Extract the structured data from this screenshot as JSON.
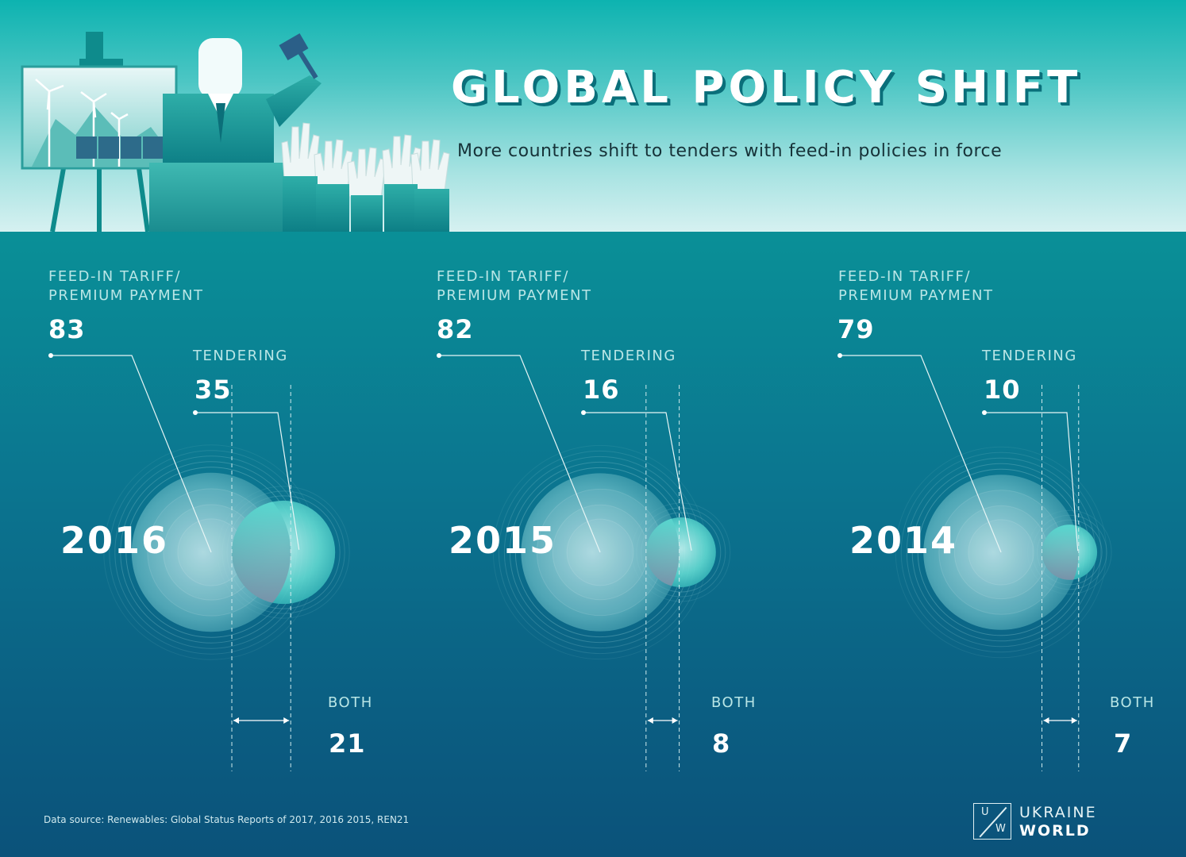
{
  "header": {
    "title": "GLOBAL POLICY SHIFT",
    "subtitle": "More countries shift to tenders with feed-in policies in force"
  },
  "chart_data": {
    "type": "venn",
    "title": "GLOBAL POLICY SHIFT",
    "subtitle": "More countries shift to tenders with feed-in policies in force",
    "series_labels": {
      "feed_in": "FEED-IN TARIFF/\nPREMIUM PAYMENT",
      "feed_in_line1": "FEED-IN TARIFF/",
      "feed_in_line2": "PREMIUM PAYMENT",
      "tendering": "TENDERING",
      "both": "BOTH"
    },
    "panels": [
      {
        "year": "2016",
        "feed_in": "83",
        "tendering": "35",
        "both": "21"
      },
      {
        "year": "2015",
        "feed_in": "82",
        "tendering": "16",
        "both": "8"
      },
      {
        "year": "2014",
        "feed_in": "79",
        "tendering": "10",
        "both": "7"
      }
    ]
  },
  "footer": {
    "source": "Data source: Renewables: Global Status Reports of 2017, 2016 2015, REN21",
    "logo_u": "U",
    "logo_w": "W",
    "logo_line1": "UKRAINE",
    "logo_line2": "WORLD"
  },
  "colors": {
    "header_top": "#0db3b0",
    "header_bottom": "#d6f1f1",
    "body_top": "#0a8f97",
    "body_bottom": "#0b527a",
    "title_shadow": "#0a6f7a",
    "label": "#b9e6e6"
  }
}
